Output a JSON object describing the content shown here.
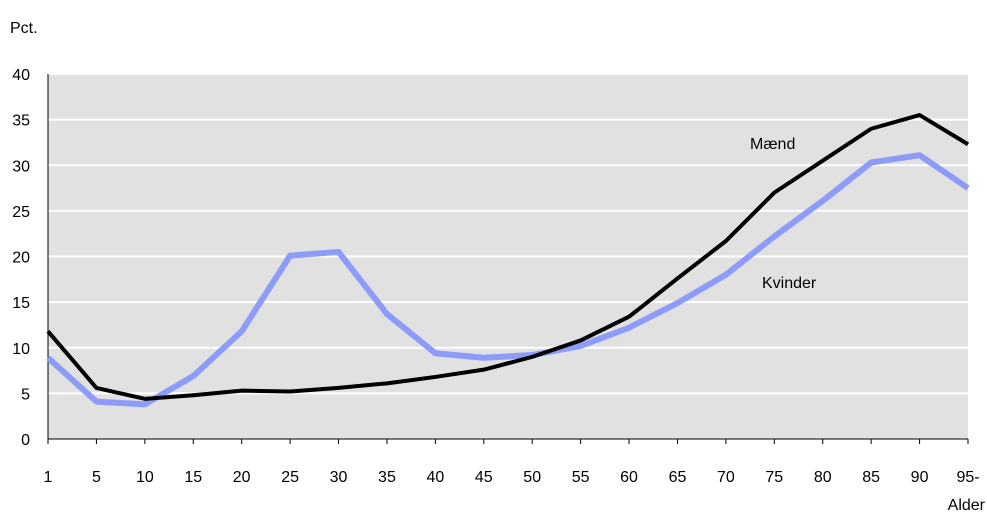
{
  "chart_data": {
    "type": "line",
    "ylabel": "Pct.",
    "xlabel": "Alder",
    "ylim": [
      0,
      40
    ],
    "y_ticks": [
      "0",
      "5",
      "10",
      "15",
      "20",
      "25",
      "30",
      "35",
      "40"
    ],
    "categories": [
      "1",
      "5",
      "10",
      "15",
      "20",
      "25",
      "30",
      "35",
      "40",
      "45",
      "50",
      "55",
      "60",
      "65",
      "70",
      "75",
      "80",
      "85",
      "90",
      "95-"
    ],
    "grid": true,
    "background_color": "#e1e1e1",
    "series": [
      {
        "name": "Mænd",
        "color": "#000000",
        "values": [
          11.8,
          5.6,
          4.4,
          4.8,
          5.3,
          5.2,
          5.6,
          6.1,
          6.8,
          7.6,
          9.0,
          10.8,
          13.4,
          17.6,
          21.7,
          27.0,
          30.5,
          34.0,
          35.5,
          32.3
        ]
      },
      {
        "name": "Kvinder",
        "color": "#8c9cf8",
        "values": [
          8.9,
          4.1,
          3.8,
          6.9,
          11.8,
          20.1,
          20.5,
          13.7,
          9.4,
          8.9,
          9.2,
          10.2,
          12.2,
          14.9,
          18.0,
          22.2,
          26.1,
          30.3,
          31.1,
          27.5
        ]
      }
    ]
  }
}
